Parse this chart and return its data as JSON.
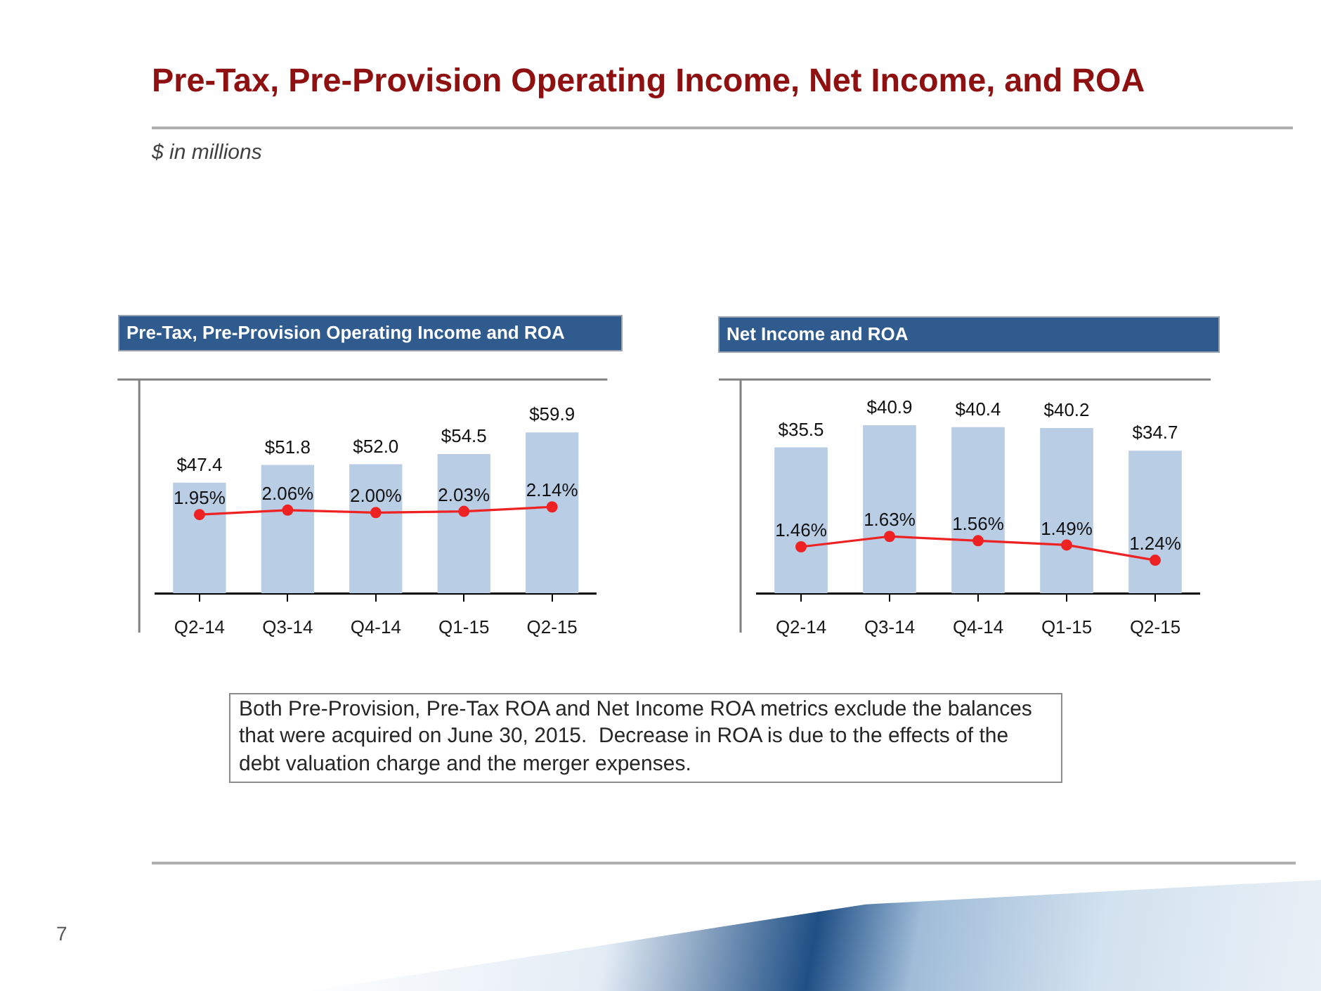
{
  "chart_data": [
    {
      "type": "other",
      "title": "Pre-Tax, Pre-Provision Operating Income, Net Income, and ROA",
      "subtitle": "$ in millions"
    },
    {
      "type": "bar",
      "title": "Pre-Tax, Pre-Provision Operating Income and ROA",
      "categories": [
        "Q2-14",
        "Q3-14",
        "Q4-14",
        "Q1-15",
        "Q2-15"
      ],
      "series": [
        {
          "type": "bar",
          "color": "#b9cde5",
          "values": [
            47.4,
            51.8,
            52.0,
            54.5,
            59.9
          ],
          "value_labels": [
            "$47.4",
            "$51.8",
            "$52.0",
            "$54.5",
            "$59.9"
          ]
        },
        {
          "type": "line",
          "axis": "y2",
          "color": "#ee2222",
          "values": [
            1.95,
            2.06,
            2.0,
            2.03,
            2.14
          ],
          "value_labels": [
            "1.95%",
            "2.06%",
            "2.00%",
            "2.03%",
            "2.14%"
          ]
        }
      ],
      "ylim": [
        20,
        73
      ],
      "y2lim": [
        0,
        5.3
      ],
      "tick_labels": "x",
      "marker": "circle"
    },
    {
      "type": "bar",
      "title": "Net Income and ROA",
      "categories": [
        "Q2-14",
        "Q3-14",
        "Q4-14",
        "Q1-15",
        "Q2-15"
      ],
      "series": [
        {
          "type": "bar",
          "color": "#b9cde5",
          "values": [
            35.5,
            40.9,
            40.4,
            40.2,
            34.7
          ],
          "value_labels": [
            "$35.5",
            "$40.9",
            "$40.4",
            "$40.2",
            "$34.7"
          ]
        },
        {
          "type": "line",
          "axis": "y2",
          "color": "#ee2222",
          "values": [
            1.46,
            1.63,
            1.56,
            1.49,
            1.24
          ],
          "value_labels": [
            "1.46%",
            "1.63%",
            "1.56%",
            "1.49%",
            "1.24%"
          ]
        }
      ],
      "ylim": [
        0,
        52
      ],
      "y2lim": [
        0.7,
        4.2
      ],
      "tick_labels": "x",
      "marker": "circle"
    },
    {
      "type": "other",
      "annotations": [
        "Both Pre-Provision, Pre-Tax ROA and Net Income ROA metrics exclude the balances that were acquired on June 30, 2015.  Decrease in ROA is due to the effects of the debt valuation charge and the merger expenses.",
        "7"
      ]
    }
  ]
}
